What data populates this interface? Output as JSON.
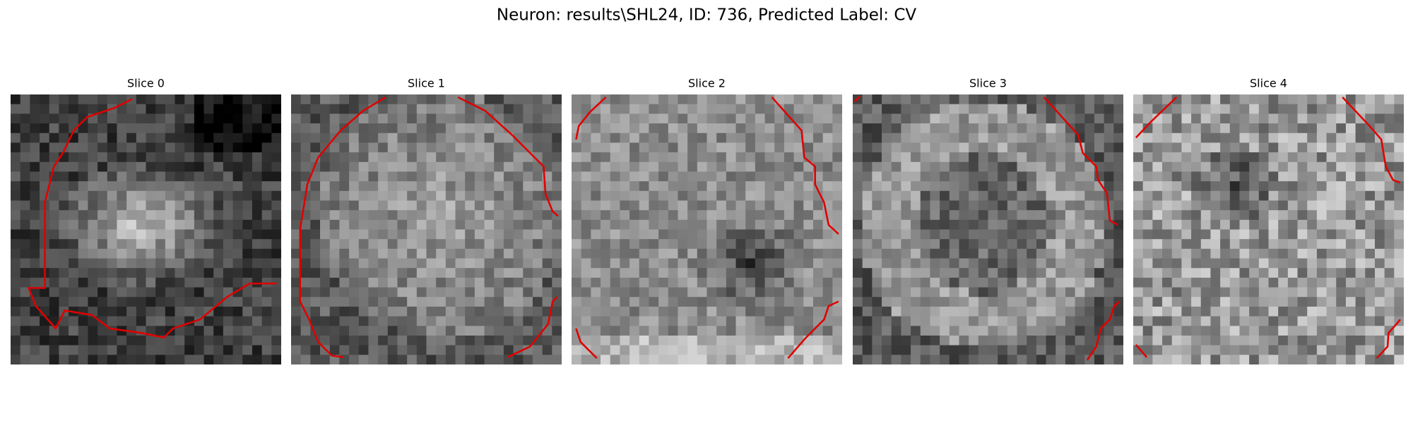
{
  "title": "Neuron: results\\SHL24, ID: 736, Predicted Label: CV",
  "panels": [
    {
      "title": "Slice 0"
    },
    {
      "title": "Slice 1"
    },
    {
      "title": "Slice 2"
    },
    {
      "title": "Slice 3"
    },
    {
      "title": "Slice 4"
    }
  ]
}
